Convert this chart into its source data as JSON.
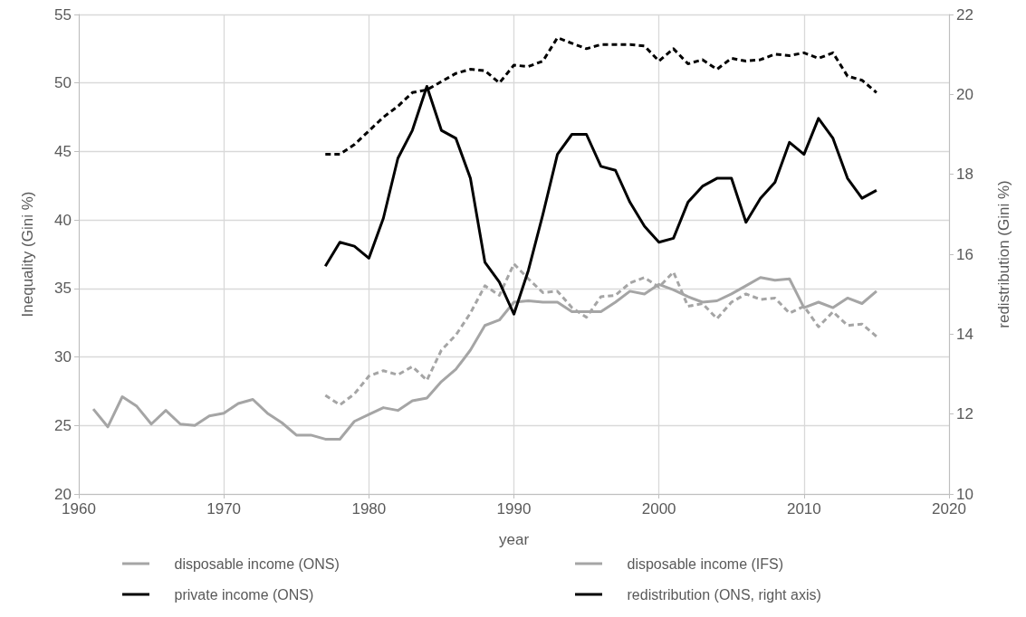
{
  "chart_data": {
    "type": "line",
    "xlabel": "year",
    "ylabel": "Inequality (Gini %)",
    "y2label": "redistribution (Gini %)",
    "xlim": [
      1960,
      2020
    ],
    "xticks": [
      1960,
      1970,
      1980,
      1990,
      2000,
      2010,
      2020
    ],
    "ylim": [
      20,
      55
    ],
    "yticks": [
      20,
      25,
      30,
      35,
      40,
      45,
      50,
      55
    ],
    "y2lim": [
      10,
      22
    ],
    "y2ticks": [
      10,
      12,
      14,
      16,
      18,
      20,
      22
    ],
    "grid": true,
    "legend": "bottom",
    "marker": "none",
    "series": [
      {
        "name": "disposable income (ONS)",
        "color": "#a5a5a5",
        "line_style": "dashed",
        "x": [
          1977,
          1978,
          1979,
          1980,
          1981,
          1982,
          1983,
          1984,
          1985,
          1986,
          1987,
          1988,
          1989,
          1990,
          1991,
          1992,
          1993,
          1994,
          1995,
          1996,
          1997,
          1998,
          1999,
          2000,
          2001,
          2002,
          2003,
          2004,
          2005,
          2006,
          2007,
          2008,
          2009,
          2010,
          2011,
          2012,
          2013,
          2014,
          2015
        ],
        "values": [
          27.2,
          26.5,
          27.3,
          28.6,
          29.0,
          28.7,
          29.3,
          28.3,
          30.5,
          31.6,
          33.2,
          35.2,
          34.5,
          36.8,
          35.7,
          34.7,
          34.8,
          33.6,
          32.9,
          34.4,
          34.5,
          35.4,
          35.8,
          35.1,
          36.2,
          33.7,
          33.9,
          32.8,
          34.0,
          34.6,
          34.2,
          34.3,
          33.2,
          33.7,
          32.2,
          33.3,
          32.3,
          32.4,
          31.5
        ]
      },
      {
        "name": "disposable income (IFS)",
        "color": "#a5a5a5",
        "line_style": "solid",
        "x": [
          1961,
          1962,
          1963,
          1964,
          1965,
          1966,
          1967,
          1968,
          1969,
          1970,
          1971,
          1972,
          1973,
          1974,
          1975,
          1976,
          1977,
          1978,
          1979,
          1980,
          1981,
          1982,
          1983,
          1984,
          1985,
          1986,
          1987,
          1988,
          1989,
          1990,
          1991,
          1992,
          1993,
          1994,
          1995,
          1996,
          1997,
          1998,
          1999,
          2000,
          2001,
          2002,
          2003,
          2004,
          2005,
          2006,
          2007,
          2008,
          2009,
          2010,
          2011,
          2012,
          2013,
          2014,
          2015
        ],
        "values": [
          26.2,
          24.9,
          27.1,
          26.4,
          25.1,
          26.1,
          25.1,
          25.0,
          25.7,
          25.9,
          26.6,
          26.9,
          25.9,
          25.2,
          24.3,
          24.3,
          24.0,
          24.0,
          25.3,
          25.8,
          26.3,
          26.1,
          26.8,
          27.0,
          28.2,
          29.1,
          30.5,
          32.3,
          32.7,
          34.0,
          34.1,
          34.0,
          34.0,
          33.3,
          33.3,
          33.3,
          34.0,
          34.8,
          34.6,
          35.3,
          34.9,
          34.4,
          34.0,
          34.1,
          34.6,
          35.2,
          35.8,
          35.6,
          35.7,
          33.6,
          34.0,
          33.6,
          34.3,
          33.9,
          34.8
        ]
      },
      {
        "name": "private income (ONS)",
        "color": "#000000",
        "line_style": "dashed",
        "x": [
          1977,
          1978,
          1979,
          1980,
          1981,
          1982,
          1983,
          1984,
          1985,
          1986,
          1987,
          1988,
          1989,
          1990,
          1991,
          1992,
          1993,
          1994,
          1995,
          1996,
          1997,
          1998,
          1999,
          2000,
          2001,
          2002,
          2003,
          2004,
          2005,
          2006,
          2007,
          2008,
          2009,
          2010,
          2011,
          2012,
          2013,
          2014,
          2015
        ],
        "values": [
          44.8,
          44.8,
          45.5,
          46.5,
          47.5,
          48.3,
          49.3,
          49.5,
          50.1,
          50.7,
          51.0,
          50.9,
          50.0,
          51.3,
          51.2,
          51.6,
          53.3,
          52.9,
          52.5,
          52.8,
          52.8,
          52.8,
          52.7,
          51.6,
          52.5,
          51.4,
          51.7,
          51.0,
          51.8,
          51.6,
          51.7,
          52.1,
          52.0,
          52.2,
          51.8,
          52.2,
          50.5,
          50.2,
          49.3
        ]
      },
      {
        "name": "redistribution (ONS, right axis)",
        "color": "#000000",
        "line_style": "solid",
        "axis": "y2",
        "x": [
          1977,
          1978,
          1979,
          1980,
          1981,
          1982,
          1983,
          1984,
          1985,
          1986,
          1987,
          1988,
          1989,
          1990,
          1991,
          1992,
          1993,
          1994,
          1995,
          1996,
          1997,
          1998,
          1999,
          2000,
          2001,
          2002,
          2003,
          2004,
          2005,
          2006,
          2007,
          2008,
          2009,
          2010,
          2011,
          2012,
          2013,
          2014,
          2015
        ],
        "values": [
          15.7,
          16.3,
          16.2,
          15.9,
          16.9,
          18.4,
          19.1,
          20.2,
          19.1,
          18.9,
          17.9,
          15.8,
          15.3,
          14.5,
          15.6,
          17.0,
          18.5,
          19.0,
          19.0,
          18.2,
          18.1,
          17.3,
          16.7,
          16.3,
          16.4,
          17.3,
          17.7,
          17.9,
          17.9,
          16.8,
          17.4,
          17.8,
          18.8,
          18.5,
          19.4,
          18.9,
          17.9,
          17.4,
          17.6
        ]
      }
    ]
  }
}
